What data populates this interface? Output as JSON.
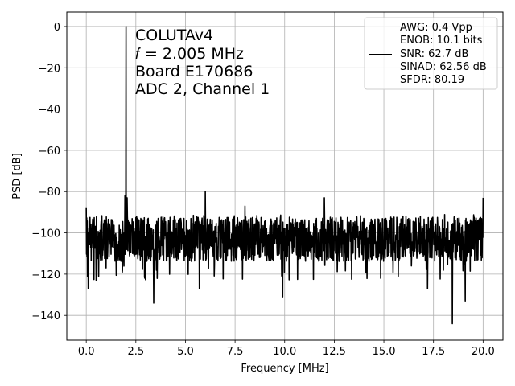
{
  "chart_data": {
    "type": "line",
    "title": "",
    "xlabel": "Frequency [MHz]",
    "ylabel": "PSD [dB]",
    "xlim": [
      -0.98,
      21.0
    ],
    "ylim": [
      -152,
      7
    ],
    "x_ticks": [
      0.0,
      2.5,
      5.0,
      7.5,
      10.0,
      12.5,
      15.0,
      17.5,
      20.0
    ],
    "x_tick_labels": [
      "0.0",
      "2.5",
      "5.0",
      "7.5",
      "10.0",
      "12.5",
      "15.0",
      "17.5",
      "20.0"
    ],
    "y_ticks": [
      0,
      -20,
      -40,
      -60,
      -80,
      -100,
      -120,
      -140
    ],
    "y_tick_labels": [
      "0",
      "−20",
      "−40",
      "−60",
      "−80",
      "−100",
      "−120",
      "−140"
    ],
    "grid": true,
    "legend_position": "top-right",
    "line_color": "#000000",
    "annotation_lines": [
      "COLUTAv4",
      "𝑓 = 2.005 MHz",
      "Board E170686",
      "ADC 2, Channel 1"
    ],
    "series": [
      {
        "legend_lines": [
          "AWG: 0.4 Vpp",
          "ENOB: 10.1 bits",
          "SNR: 62.7 dB",
          "SINAD: 62.56 dB",
          "SFDR: 80.19"
        ],
        "noise_floor_db": -103,
        "noise_range_db": [
          -115,
          -91
        ],
        "x_range": [
          0.0,
          20.0
        ],
        "peaks": [
          {
            "x": 2.005,
            "y": 0.0
          },
          {
            "x": 1.95,
            "y": -82
          },
          {
            "x": 2.06,
            "y": -83
          },
          {
            "x": 6.0,
            "y": -80
          },
          {
            "x": 8.0,
            "y": -87
          },
          {
            "x": 12.0,
            "y": -83
          },
          {
            "x": 20.0,
            "y": -83
          },
          {
            "x": 0.0,
            "y": -88
          }
        ],
        "dips": [
          {
            "x": 0.1,
            "y": -127
          },
          {
            "x": 3.4,
            "y": -134
          },
          {
            "x": 18.45,
            "y": -144
          },
          {
            "x": 19.1,
            "y": -133
          },
          {
            "x": 9.9,
            "y": -131
          },
          {
            "x": 17.2,
            "y": -127
          },
          {
            "x": 5.7,
            "y": -127
          },
          {
            "x": 0.5,
            "y": -123
          }
        ]
      }
    ]
  }
}
